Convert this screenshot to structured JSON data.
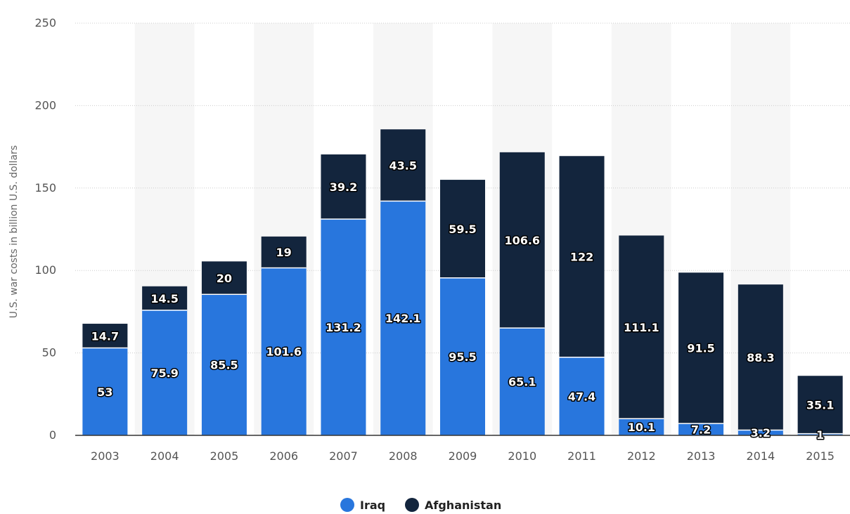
{
  "chart_data": {
    "type": "bar",
    "stacked": true,
    "categories": [
      "2003",
      "2004",
      "2005",
      "2006",
      "2007",
      "2008",
      "2009",
      "2010",
      "2011",
      "2012",
      "2013",
      "2014",
      "2015"
    ],
    "series": [
      {
        "name": "Iraq",
        "color": "#2876dd",
        "values": [
          53,
          75.9,
          85.5,
          101.6,
          131.2,
          142.1,
          95.5,
          65.1,
          47.4,
          10.1,
          7.2,
          3.2,
          1
        ]
      },
      {
        "name": "Afghanistan",
        "color": "#13253d",
        "values": [
          14.7,
          14.5,
          20,
          19,
          39.2,
          43.5,
          59.5,
          106.6,
          122,
          111.1,
          91.5,
          88.3,
          35.1
        ]
      }
    ],
    "ylabel": "U.S. war costs in billion U.S. dollars",
    "xlabel": "",
    "ylim": [
      0,
      250
    ],
    "yticks": [
      "0",
      "50",
      "100",
      "150",
      "200",
      "250"
    ],
    "grid": true,
    "legend": "bottom-center"
  }
}
